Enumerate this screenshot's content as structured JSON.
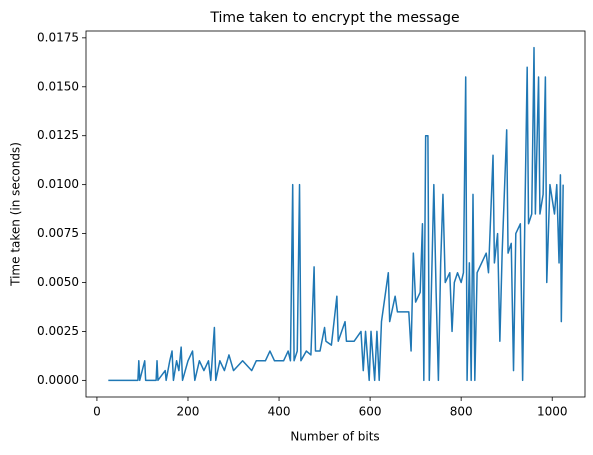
{
  "chart_data": {
    "type": "line",
    "title": "Time taken to encrypt the message",
    "xlabel": "Number of bits",
    "ylabel": "Time taken (in seconds)",
    "x": [
      25,
      90,
      92,
      94,
      105,
      107,
      130,
      132,
      134,
      150,
      152,
      160,
      165,
      168,
      175,
      180,
      185,
      188,
      200,
      210,
      215,
      225,
      235,
      245,
      250,
      258,
      261,
      270,
      280,
      290,
      300,
      320,
      340,
      350,
      370,
      380,
      390,
      410,
      420,
      425,
      430,
      433,
      440,
      445,
      448,
      460,
      470,
      477,
      480,
      490,
      500,
      503,
      515,
      527,
      530,
      545,
      548,
      565,
      580,
      585,
      590,
      598,
      602,
      610,
      615,
      620,
      625,
      640,
      643,
      655,
      660,
      670,
      685,
      690,
      695,
      700,
      710,
      715,
      718,
      722,
      727,
      730,
      735,
      740,
      745,
      750,
      755,
      760,
      765,
      775,
      780,
      785,
      792,
      800,
      805,
      810,
      813,
      818,
      822,
      826,
      830,
      835,
      845,
      855,
      860,
      870,
      873,
      880,
      885,
      890,
      900,
      903,
      910,
      915,
      920,
      930,
      935,
      940,
      945,
      948,
      955,
      960,
      963,
      970,
      973,
      980,
      985,
      988,
      995,
      1005,
      1010,
      1015,
      1018,
      1020,
      1024
    ],
    "series": [
      {
        "name": "Time taken",
        "color": "#1f77b4",
        "values": [
          0,
          0,
          0.001,
          0,
          0.001,
          0,
          0,
          0.001,
          0,
          0.0005,
          0,
          0.001,
          0.0015,
          0,
          0.001,
          0.0005,
          0.0017,
          0,
          0.001,
          0.0015,
          0,
          0.001,
          0.0005,
          0.001,
          0,
          0.0027,
          0,
          0.001,
          0.0005,
          0.0013,
          0.0005,
          0.001,
          0.0005,
          0.001,
          0.001,
          0.0015,
          0.001,
          0.001,
          0.0015,
          0.001,
          0.01,
          0.001,
          0.0015,
          0.01,
          0.001,
          0.0015,
          0.0013,
          0.0058,
          0.0015,
          0.0015,
          0.0027,
          0.002,
          0.0018,
          0.0043,
          0.002,
          0.003,
          0.002,
          0.002,
          0.0025,
          0.0005,
          0.0025,
          0,
          0.0025,
          0,
          0.0025,
          0,
          0.003,
          0.0055,
          0.003,
          0.0043,
          0.0035,
          0.0035,
          0.0035,
          0.0015,
          0.0065,
          0.004,
          0.0045,
          0.008,
          0,
          0.0125,
          0.0125,
          0,
          0.005,
          0.01,
          0.0045,
          0,
          0.006,
          0.0095,
          0.005,
          0.0055,
          0.0025,
          0.005,
          0.0055,
          0.005,
          0.0055,
          0.0155,
          0,
          0.006,
          0,
          0.0095,
          0,
          0.0055,
          0.006,
          0.0065,
          0.0055,
          0.0115,
          0.006,
          0.0075,
          0.002,
          0.0065,
          0.0128,
          0.0065,
          0.007,
          0.0005,
          0.0075,
          0.008,
          0,
          0.0085,
          0.016,
          0.008,
          0.0085,
          0.017,
          0.0085,
          0.0155,
          0.0085,
          0.0095,
          0.0155,
          0.005,
          0.01,
          0.0085,
          0.01,
          0.006,
          0.0105,
          0.003,
          0.01
        ]
      }
    ],
    "xlim": [
      -24,
      1072
    ],
    "ylim": [
      -0.00085,
      0.01785
    ],
    "xticks": [
      0,
      200,
      400,
      600,
      800,
      1000
    ],
    "yticks": [
      {
        "value": 0,
        "label": "0.0000"
      },
      {
        "value": 0.0025,
        "label": "0.0025"
      },
      {
        "value": 0.005,
        "label": "0.0050"
      },
      {
        "value": 0.0075,
        "label": "0.0075"
      },
      {
        "value": 0.01,
        "label": "0.0100"
      },
      {
        "value": 0.0125,
        "label": "0.0125"
      },
      {
        "value": 0.015,
        "label": "0.0150"
      },
      {
        "value": 0.0175,
        "label": "0.0175"
      }
    ],
    "grid": false
  }
}
